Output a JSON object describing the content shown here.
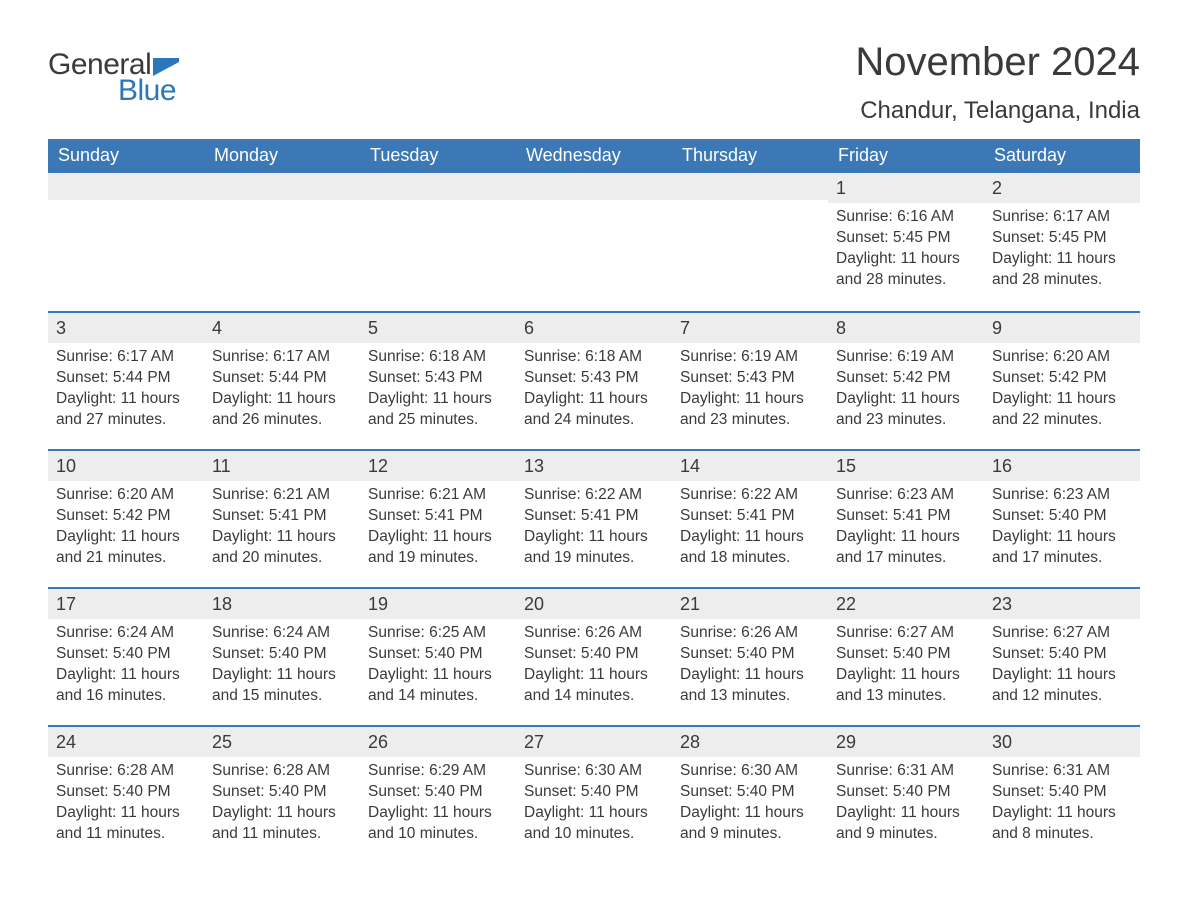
{
  "logo": {
    "text1": "General",
    "text2": "Blue",
    "flag_color": "#2d76bb"
  },
  "title": "November 2024",
  "location": "Chandur, Telangana, India",
  "colors": {
    "header_bg": "#3b78b5",
    "header_text": "#ffffff",
    "daynum_bg": "#ededed",
    "border": "#3b78b5",
    "text": "#3a3a3a",
    "background": "#ffffff"
  },
  "typography": {
    "title_fontsize": 40,
    "location_fontsize": 24,
    "dayheader_fontsize": 18,
    "daynum_fontsize": 18,
    "body_fontsize": 15.5,
    "font_family": "Arial"
  },
  "day_headers": [
    "Sunday",
    "Monday",
    "Tuesday",
    "Wednesday",
    "Thursday",
    "Friday",
    "Saturday"
  ],
  "weeks": [
    [
      {
        "n": "",
        "sunrise": "",
        "sunset": "",
        "daylight": ""
      },
      {
        "n": "",
        "sunrise": "",
        "sunset": "",
        "daylight": ""
      },
      {
        "n": "",
        "sunrise": "",
        "sunset": "",
        "daylight": ""
      },
      {
        "n": "",
        "sunrise": "",
        "sunset": "",
        "daylight": ""
      },
      {
        "n": "",
        "sunrise": "",
        "sunset": "",
        "daylight": ""
      },
      {
        "n": "1",
        "sunrise": "Sunrise: 6:16 AM",
        "sunset": "Sunset: 5:45 PM",
        "daylight": "Daylight: 11 hours and 28 minutes."
      },
      {
        "n": "2",
        "sunrise": "Sunrise: 6:17 AM",
        "sunset": "Sunset: 5:45 PM",
        "daylight": "Daylight: 11 hours and 28 minutes."
      }
    ],
    [
      {
        "n": "3",
        "sunrise": "Sunrise: 6:17 AM",
        "sunset": "Sunset: 5:44 PM",
        "daylight": "Daylight: 11 hours and 27 minutes."
      },
      {
        "n": "4",
        "sunrise": "Sunrise: 6:17 AM",
        "sunset": "Sunset: 5:44 PM",
        "daylight": "Daylight: 11 hours and 26 minutes."
      },
      {
        "n": "5",
        "sunrise": "Sunrise: 6:18 AM",
        "sunset": "Sunset: 5:43 PM",
        "daylight": "Daylight: 11 hours and 25 minutes."
      },
      {
        "n": "6",
        "sunrise": "Sunrise: 6:18 AM",
        "sunset": "Sunset: 5:43 PM",
        "daylight": "Daylight: 11 hours and 24 minutes."
      },
      {
        "n": "7",
        "sunrise": "Sunrise: 6:19 AM",
        "sunset": "Sunset: 5:43 PM",
        "daylight": "Daylight: 11 hours and 23 minutes."
      },
      {
        "n": "8",
        "sunrise": "Sunrise: 6:19 AM",
        "sunset": "Sunset: 5:42 PM",
        "daylight": "Daylight: 11 hours and 23 minutes."
      },
      {
        "n": "9",
        "sunrise": "Sunrise: 6:20 AM",
        "sunset": "Sunset: 5:42 PM",
        "daylight": "Daylight: 11 hours and 22 minutes."
      }
    ],
    [
      {
        "n": "10",
        "sunrise": "Sunrise: 6:20 AM",
        "sunset": "Sunset: 5:42 PM",
        "daylight": "Daylight: 11 hours and 21 minutes."
      },
      {
        "n": "11",
        "sunrise": "Sunrise: 6:21 AM",
        "sunset": "Sunset: 5:41 PM",
        "daylight": "Daylight: 11 hours and 20 minutes."
      },
      {
        "n": "12",
        "sunrise": "Sunrise: 6:21 AM",
        "sunset": "Sunset: 5:41 PM",
        "daylight": "Daylight: 11 hours and 19 minutes."
      },
      {
        "n": "13",
        "sunrise": "Sunrise: 6:22 AM",
        "sunset": "Sunset: 5:41 PM",
        "daylight": "Daylight: 11 hours and 19 minutes."
      },
      {
        "n": "14",
        "sunrise": "Sunrise: 6:22 AM",
        "sunset": "Sunset: 5:41 PM",
        "daylight": "Daylight: 11 hours and 18 minutes."
      },
      {
        "n": "15",
        "sunrise": "Sunrise: 6:23 AM",
        "sunset": "Sunset: 5:41 PM",
        "daylight": "Daylight: 11 hours and 17 minutes."
      },
      {
        "n": "16",
        "sunrise": "Sunrise: 6:23 AM",
        "sunset": "Sunset: 5:40 PM",
        "daylight": "Daylight: 11 hours and 17 minutes."
      }
    ],
    [
      {
        "n": "17",
        "sunrise": "Sunrise: 6:24 AM",
        "sunset": "Sunset: 5:40 PM",
        "daylight": "Daylight: 11 hours and 16 minutes."
      },
      {
        "n": "18",
        "sunrise": "Sunrise: 6:24 AM",
        "sunset": "Sunset: 5:40 PM",
        "daylight": "Daylight: 11 hours and 15 minutes."
      },
      {
        "n": "19",
        "sunrise": "Sunrise: 6:25 AM",
        "sunset": "Sunset: 5:40 PM",
        "daylight": "Daylight: 11 hours and 14 minutes."
      },
      {
        "n": "20",
        "sunrise": "Sunrise: 6:26 AM",
        "sunset": "Sunset: 5:40 PM",
        "daylight": "Daylight: 11 hours and 14 minutes."
      },
      {
        "n": "21",
        "sunrise": "Sunrise: 6:26 AM",
        "sunset": "Sunset: 5:40 PM",
        "daylight": "Daylight: 11 hours and 13 minutes."
      },
      {
        "n": "22",
        "sunrise": "Sunrise: 6:27 AM",
        "sunset": "Sunset: 5:40 PM",
        "daylight": "Daylight: 11 hours and 13 minutes."
      },
      {
        "n": "23",
        "sunrise": "Sunrise: 6:27 AM",
        "sunset": "Sunset: 5:40 PM",
        "daylight": "Daylight: 11 hours and 12 minutes."
      }
    ],
    [
      {
        "n": "24",
        "sunrise": "Sunrise: 6:28 AM",
        "sunset": "Sunset: 5:40 PM",
        "daylight": "Daylight: 11 hours and 11 minutes."
      },
      {
        "n": "25",
        "sunrise": "Sunrise: 6:28 AM",
        "sunset": "Sunset: 5:40 PM",
        "daylight": "Daylight: 11 hours and 11 minutes."
      },
      {
        "n": "26",
        "sunrise": "Sunrise: 6:29 AM",
        "sunset": "Sunset: 5:40 PM",
        "daylight": "Daylight: 11 hours and 10 minutes."
      },
      {
        "n": "27",
        "sunrise": "Sunrise: 6:30 AM",
        "sunset": "Sunset: 5:40 PM",
        "daylight": "Daylight: 11 hours and 10 minutes."
      },
      {
        "n": "28",
        "sunrise": "Sunrise: 6:30 AM",
        "sunset": "Sunset: 5:40 PM",
        "daylight": "Daylight: 11 hours and 9 minutes."
      },
      {
        "n": "29",
        "sunrise": "Sunrise: 6:31 AM",
        "sunset": "Sunset: 5:40 PM",
        "daylight": "Daylight: 11 hours and 9 minutes."
      },
      {
        "n": "30",
        "sunrise": "Sunrise: 6:31 AM",
        "sunset": "Sunset: 5:40 PM",
        "daylight": "Daylight: 11 hours and 8 minutes."
      }
    ]
  ]
}
